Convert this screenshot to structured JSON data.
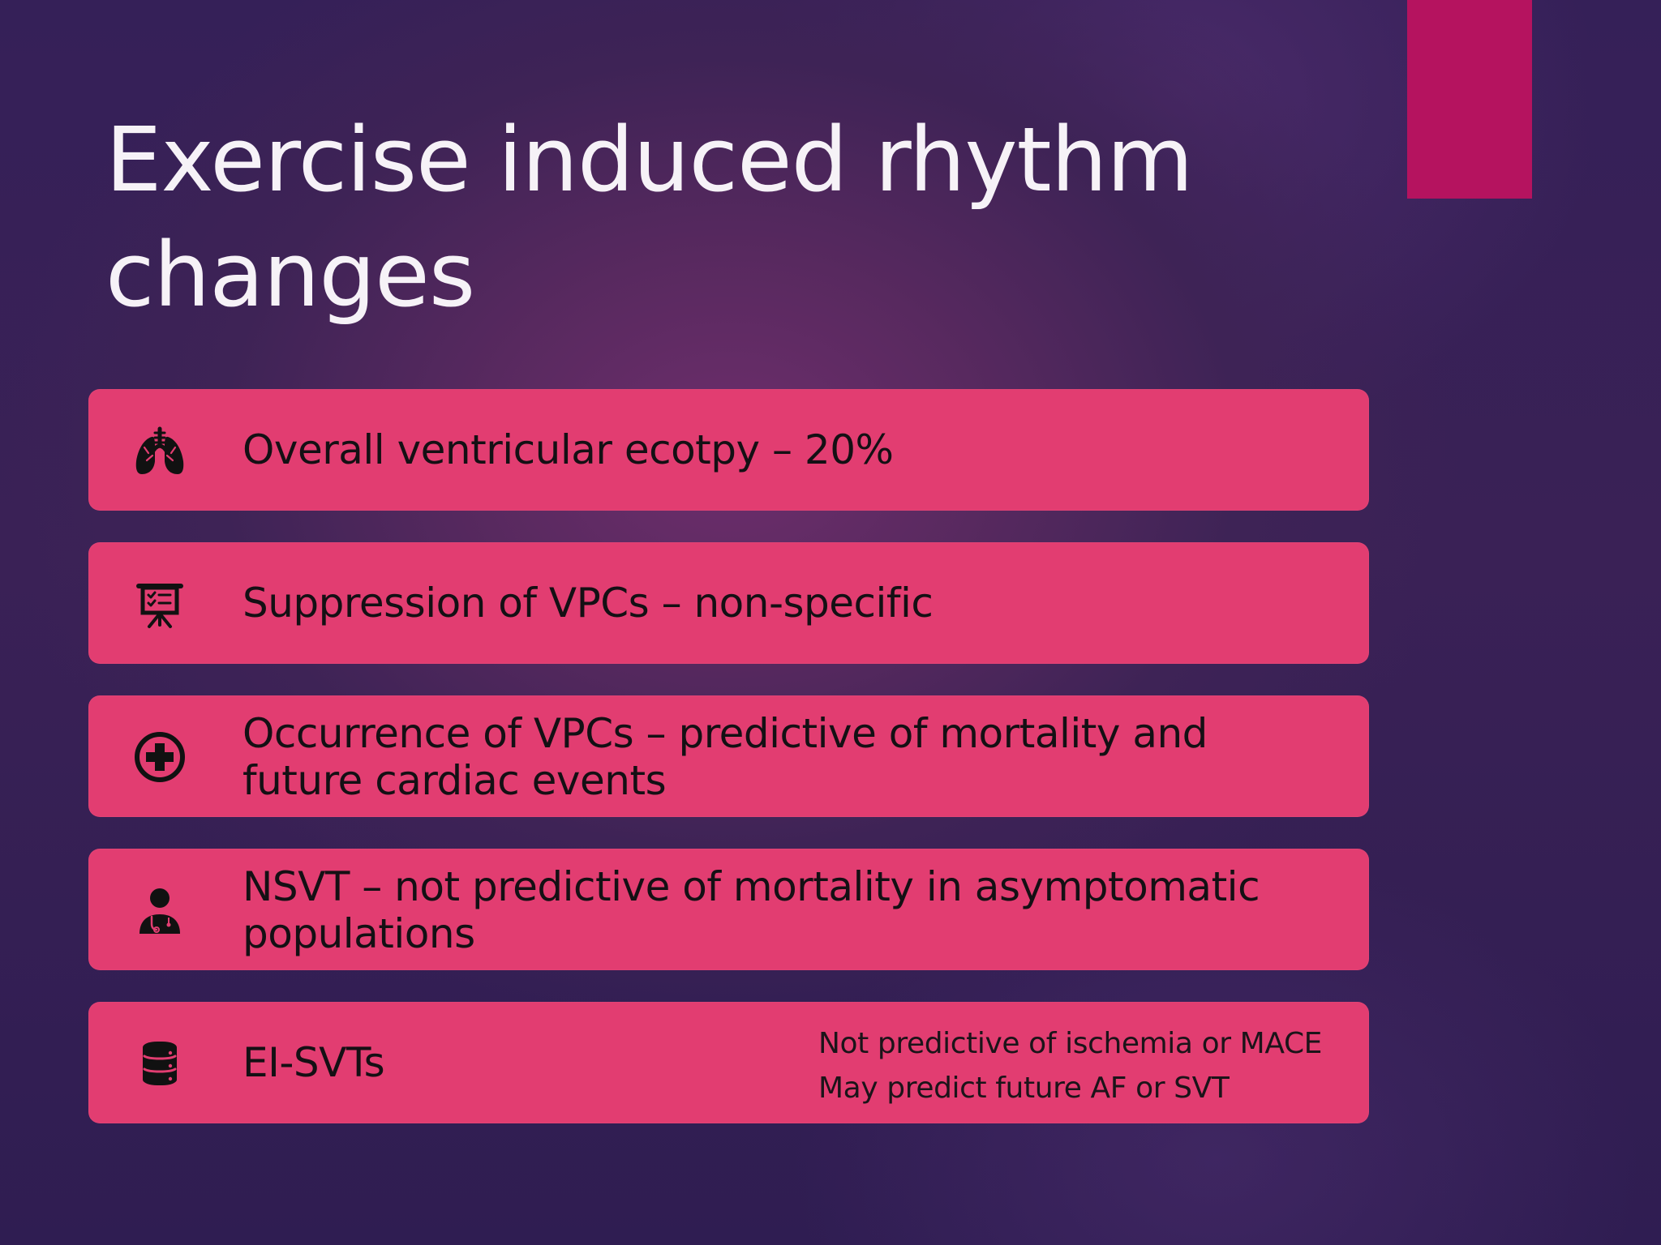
{
  "slide": {
    "title_line1": "Exercise induced rhythm",
    "title_line2": "changes",
    "colors": {
      "accent": "#b5135f",
      "card": "#e23d71",
      "title": "#f6f2f7",
      "card_text": "#141014"
    }
  },
  "items": [
    {
      "icon": "lungs-icon",
      "line1": "Overall ventricular ecotpy – 20%"
    },
    {
      "icon": "presentation-board-icon",
      "line1": "Suppression of VPCs – non-specific"
    },
    {
      "icon": "medical-cross-icon",
      "line1": "Occurrence of VPCs – predictive of mortality and",
      "line2": "future cardiac events"
    },
    {
      "icon": "doctor-icon",
      "line1": "NSVT – not predictive of mortality in asymptomatic",
      "line2": "populations"
    },
    {
      "icon": "database-icon",
      "line1": "EI-SVTs",
      "detail_lines": [
        "Not predictive of ischemia or MACE",
        "May predict future AF or SVT"
      ]
    }
  ]
}
